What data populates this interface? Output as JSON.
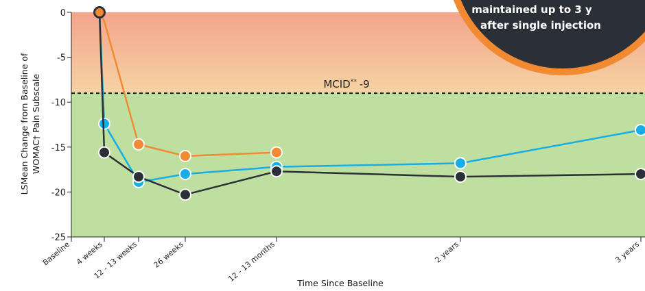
{
  "chart_data": {
    "type": "line",
    "xlabel": "Time Since Baseline",
    "ylabel_line1": "LSMean Change from Baseline of",
    "ylabel_line2": "WOMAC† Pain Subscale",
    "ylim": [
      -25,
      0
    ],
    "yticks": [
      0,
      -5,
      -10,
      -15,
      -20,
      -25
    ],
    "categories": [
      "Baseline",
      "4 weeks",
      "12 - 13 weeks",
      "26 weeks",
      "12 - 13 months",
      "2 years",
      "3 years"
    ],
    "reference_line": {
      "value": -9,
      "label": "MCID",
      "label_sup": "**",
      "label_value": "-9"
    },
    "background_bands": [
      {
        "from": 0,
        "to": -9,
        "colors": [
          "#f4a48c",
          "#f5d3a3"
        ]
      },
      {
        "from": -9,
        "to": -25,
        "color": "#bedf9f"
      }
    ],
    "series": [
      {
        "color": "#f28a31",
        "points": [
          [
            0,
            0
          ],
          [
            1,
            -1.0
          ],
          [
            2,
            -14.7
          ],
          [
            3,
            -16.0
          ],
          [
            4,
            -15.6
          ]
        ]
      },
      {
        "color": "#16aee5",
        "points": [
          [
            0,
            0
          ],
          [
            1,
            -12.4
          ],
          [
            2,
            -18.9
          ],
          [
            3,
            -18.0
          ],
          [
            4,
            -17.2
          ],
          [
            5,
            -16.8
          ],
          [
            6,
            -13.1
          ]
        ]
      },
      {
        "color": "#2b2f36",
        "points": [
          [
            0,
            0
          ],
          [
            1,
            -15.6
          ],
          [
            2,
            -18.3
          ],
          [
            3,
            -20.3
          ],
          [
            4,
            -17.7
          ],
          [
            5,
            -18.3
          ],
          [
            6,
            -18.0
          ]
        ]
      }
    ],
    "annotation_lines": [
      "maintained up to 3 y",
      "after single injection"
    ]
  }
}
